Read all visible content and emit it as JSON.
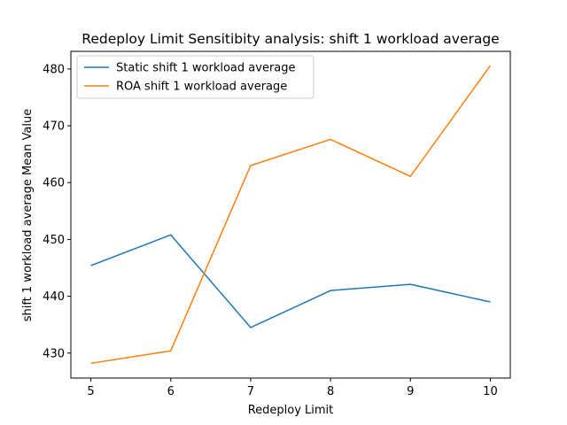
{
  "chart_data": {
    "type": "line",
    "title": "Redeploy Limit Sensitibity analysis: shift 1 workload average",
    "xlabel": "Redeploy Limit",
    "ylabel": "shift 1 workload average Mean Value",
    "x": [
      5,
      6,
      7,
      8,
      9,
      10
    ],
    "xlim": [
      4.75,
      10.25
    ],
    "ylim": [
      425.6,
      483.1
    ],
    "xticks": [
      5,
      6,
      7,
      8,
      9,
      10
    ],
    "yticks": [
      430,
      440,
      450,
      460,
      470,
      480
    ],
    "grid": false,
    "legend_position": "upper-left",
    "series": [
      {
        "name": "Static shift 1 workload average",
        "color": "#1f77b4",
        "values": [
          445.4,
          450.8,
          434.5,
          441.0,
          442.1,
          439.0
        ]
      },
      {
        "name": "ROA shift 1 workload average",
        "color": "#ff7f0e",
        "values": [
          428.2,
          430.4,
          463.0,
          467.6,
          461.1,
          480.6
        ]
      }
    ]
  }
}
